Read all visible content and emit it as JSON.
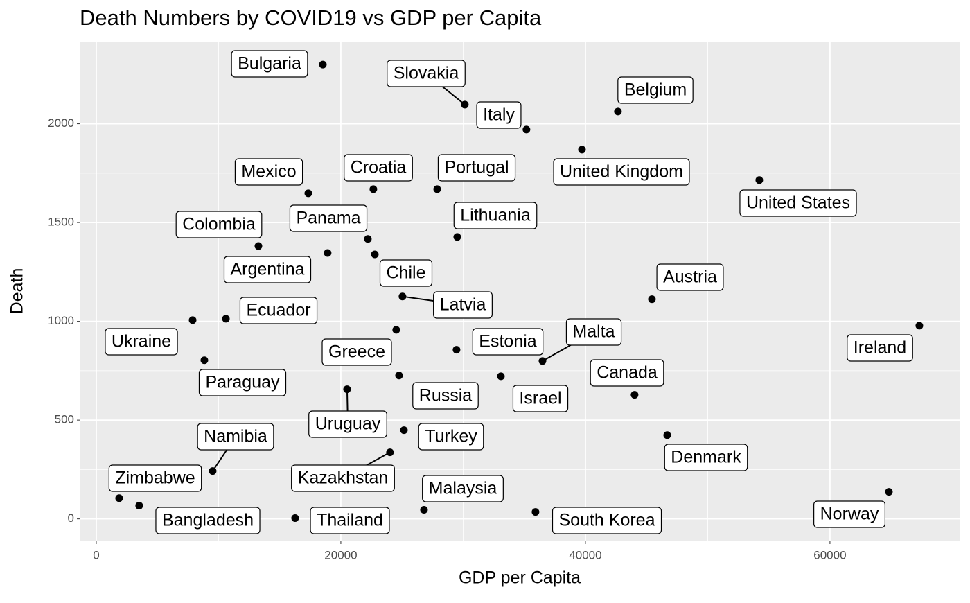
{
  "chart_data": {
    "type": "scatter",
    "title": "Death Numbers by COVID19 vs GDP per Capita",
    "xlabel": "GDP per Capita",
    "ylabel": "Death",
    "labels": [
      "Bulgaria",
      "Slovakia",
      "Italy",
      "Belgium",
      "United Kingdom",
      "United States",
      "Mexico",
      "Croatia",
      "Portugal",
      "Lithuania",
      "Colombia",
      "Panama",
      "Argentina",
      "Chile",
      "Latvia",
      "Austria",
      "Ecuador",
      "Ukraine",
      "Ireland",
      "Greece",
      "Estonia",
      "Malta",
      "Paraguay",
      "Russia",
      "Israel",
      "Canada",
      "Uruguay",
      "Turkey",
      "Denmark",
      "Kazakhstan",
      "Namibia",
      "Norway",
      "Zimbabwe",
      "Bangladesh",
      "Malaysia",
      "South Korea",
      "Thailand"
    ],
    "x": [
      18530,
      30140,
      35180,
      42660,
      39720,
      54220,
      17340,
      22660,
      27880,
      29520,
      13260,
      22210,
      18920,
      22780,
      25040,
      45440,
      10600,
      7880,
      67310,
      24530,
      29460,
      36490,
      8840,
      24760,
      33090,
      44020,
      20510,
      25160,
      46690,
      24020,
      9520,
      64820,
      1870,
      3510,
      26800,
      35920,
      16260
    ],
    "y": [
      2300,
      2097,
      1971,
      2062,
      1869,
      1715,
      1648,
      1669,
      1669,
      1427,
      1381,
      1417,
      1346,
      1339,
      1126,
      1112,
      1013,
      1006,
      978,
      957,
      856,
      799,
      803,
      726,
      722,
      628,
      656,
      449,
      424,
      337,
      242,
      137,
      105,
      67,
      46,
      35,
      4
    ],
    "color": "#000000",
    "xlim": [
      -1300,
      70600
    ],
    "ylim": [
      -110,
      2416
    ],
    "xticks": [
      0,
      20000,
      40000,
      60000
    ],
    "yticks": [
      0,
      500,
      1000,
      1500,
      2000
    ],
    "grid": true
  }
}
